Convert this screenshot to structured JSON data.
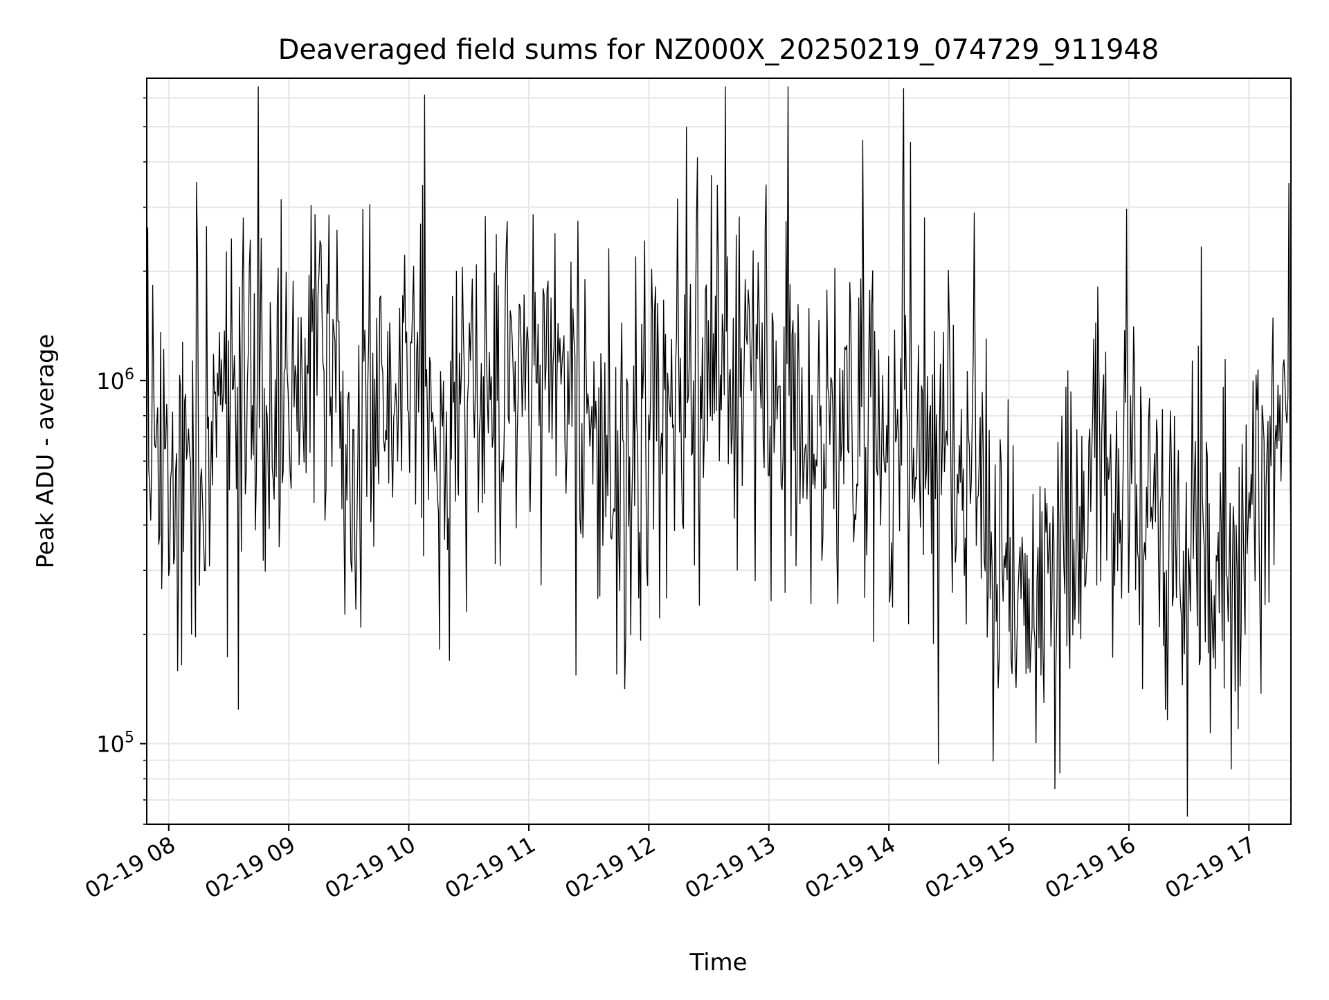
{
  "chart_data": {
    "type": "line",
    "title": "Deaveraged field sums for NZ000X_20250219_074729_911948",
    "xlabel": "Time",
    "ylabel": "Peak ADU - average",
    "x_start": "2025-02-19 07:49",
    "x_end": "2025-02-19 17:21",
    "xlim": [
      "2025-02-19 07:49",
      "2025-02-19 17:21"
    ],
    "xticks": [
      "02-19 08",
      "02-19 09",
      "02-19 10",
      "02-19 11",
      "02-19 12",
      "02-19 13",
      "02-19 14",
      "02-19 15",
      "02-19 16",
      "02-19 17"
    ],
    "yscale": "log",
    "ylim": [
      60000,
      6800000
    ],
    "yticks": [
      {
        "value": 100000,
        "base": "10",
        "exp": "5"
      },
      {
        "value": 1000000,
        "base": "10",
        "exp": "6"
      }
    ],
    "grid": true,
    "line_color": "#000000",
    "trend_hourly_median": [
      {
        "time": "02-19 07:49",
        "value": 700000
      },
      {
        "time": "02-19 08:15",
        "value": 480000
      },
      {
        "time": "02-19 08:30",
        "value": 750000
      },
      {
        "time": "02-19 09:00",
        "value": 950000
      },
      {
        "time": "02-19 09:20",
        "value": 1000000
      },
      {
        "time": "02-19 09:35",
        "value": 520000
      },
      {
        "time": "02-19 09:50",
        "value": 1100000
      },
      {
        "time": "02-19 10:10",
        "value": 620000
      },
      {
        "time": "02-19 10:30",
        "value": 700000
      },
      {
        "time": "02-19 10:50",
        "value": 1150000
      },
      {
        "time": "02-19 11:20",
        "value": 950000
      },
      {
        "time": "02-19 11:45",
        "value": 560000
      },
      {
        "time": "02-19 12:15",
        "value": 1000000
      },
      {
        "time": "02-19 12:50",
        "value": 1250000
      },
      {
        "time": "02-19 13:20",
        "value": 650000
      },
      {
        "time": "02-19 13:50",
        "value": 850000
      },
      {
        "time": "02-19 14:20",
        "value": 700000
      },
      {
        "time": "02-19 14:45",
        "value": 560000
      },
      {
        "time": "02-19 15:00",
        "value": 280000
      },
      {
        "time": "02-19 15:25",
        "value": 260000
      },
      {
        "time": "02-19 15:45",
        "value": 700000
      },
      {
        "time": "02-19 16:15",
        "value": 380000
      },
      {
        "time": "02-19 16:40",
        "value": 280000
      },
      {
        "time": "02-19 16:55",
        "value": 240000
      },
      {
        "time": "02-19 17:10",
        "value": 650000
      },
      {
        "time": "02-19 17:21",
        "value": 850000
      }
    ],
    "notable_values": [
      {
        "time": "02-19 12:19",
        "value": 5000000
      },
      {
        "time": "02-19 15:23",
        "value": 75000
      },
      {
        "time": "02-19 16:51",
        "value": 85000
      },
      {
        "time": "02-19 17:20",
        "value": 3500000
      }
    ]
  }
}
